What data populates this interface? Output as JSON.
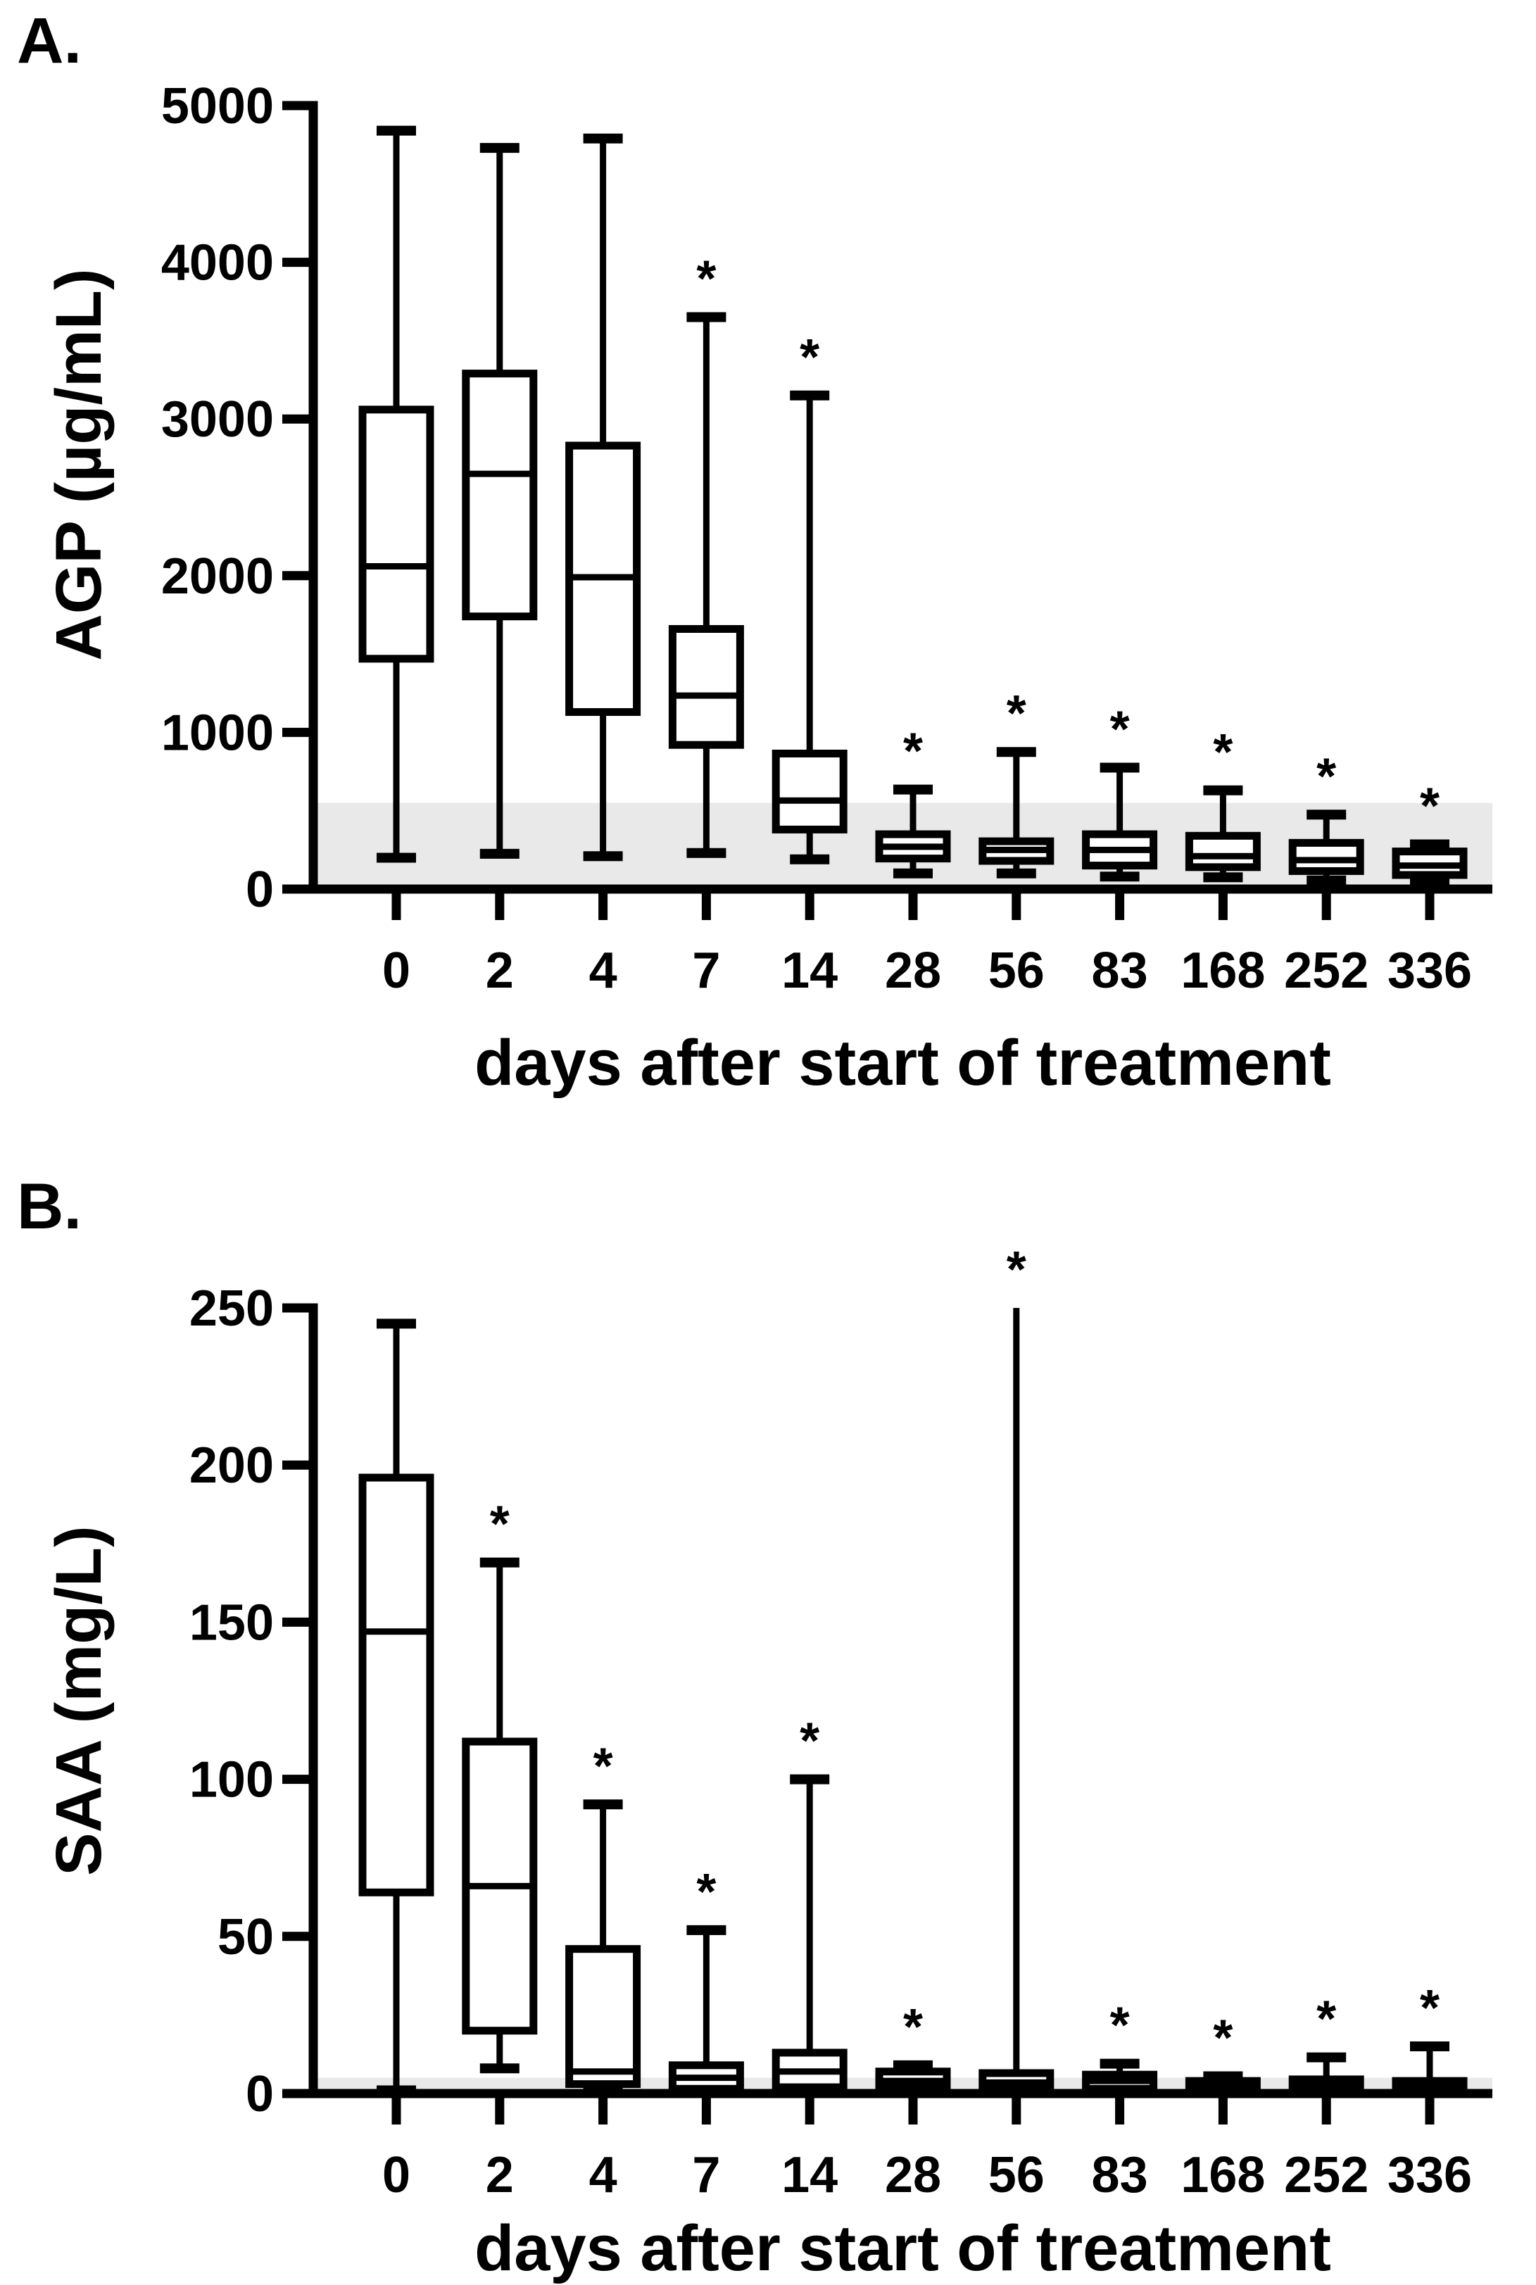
{
  "figure": {
    "background_color": "#ffffff",
    "ink_color": "#000000",
    "reference_band_color": "#e9e9e9",
    "significance_marker": "*"
  },
  "chart_data": [
    {
      "type": "box",
      "panel_label": "A.",
      "y_label": "AGP (µg/mL)",
      "x_label": "days after start of treatment",
      "ylim": [
        0,
        5000
      ],
      "y_ticks": [
        0,
        1000,
        2000,
        3000,
        4000,
        5000
      ],
      "grid": "off",
      "reference_band": [
        0,
        550
      ],
      "categories": [
        "0",
        "2",
        "4",
        "7",
        "14",
        "28",
        "56",
        "83",
        "168",
        "252",
        "336"
      ],
      "boxes": [
        {
          "day": "0",
          "whisker_low": 200,
          "q1": 1470,
          "median": 2060,
          "q3": 3060,
          "whisker_high": 4840,
          "significant": false
        },
        {
          "day": "2",
          "whisker_low": 225,
          "q1": 1740,
          "median": 2650,
          "q3": 3290,
          "whisker_high": 4730,
          "significant": false
        },
        {
          "day": "4",
          "whisker_low": 210,
          "q1": 1130,
          "median": 1990,
          "q3": 2830,
          "whisker_high": 4790,
          "significant": false
        },
        {
          "day": "7",
          "whisker_low": 230,
          "q1": 920,
          "median": 1235,
          "q3": 1660,
          "whisker_high": 3650,
          "significant": true
        },
        {
          "day": "14",
          "whisker_low": 190,
          "q1": 380,
          "median": 565,
          "q3": 865,
          "whisker_high": 3150,
          "significant": true
        },
        {
          "day": "28",
          "whisker_low": 100,
          "q1": 195,
          "median": 270,
          "q3": 350,
          "whisker_high": 635,
          "significant": true
        },
        {
          "day": "56",
          "whisker_low": 100,
          "q1": 180,
          "median": 250,
          "q3": 305,
          "whisker_high": 875,
          "significant": true
        },
        {
          "day": "83",
          "whisker_low": 80,
          "q1": 150,
          "median": 250,
          "q3": 350,
          "whisker_high": 775,
          "significant": true
        },
        {
          "day": "168",
          "whisker_low": 75,
          "q1": 140,
          "median": 210,
          "q3": 340,
          "whisker_high": 630,
          "significant": true
        },
        {
          "day": "252",
          "whisker_low": 55,
          "q1": 115,
          "median": 185,
          "q3": 295,
          "whisker_high": 475,
          "significant": true
        },
        {
          "day": "336",
          "whisker_low": 45,
          "q1": 90,
          "median": 150,
          "q3": 240,
          "whisker_high": 285,
          "significant": true
        }
      ]
    },
    {
      "type": "box",
      "panel_label": "B.",
      "y_label": "SAA (mg/L)",
      "x_label": "days after start of treatment",
      "ylim": [
        0,
        250
      ],
      "y_ticks": [
        0,
        50,
        100,
        150,
        200,
        250
      ],
      "grid": "off",
      "reference_band": [
        0,
        5
      ],
      "categories": [
        "0",
        "2",
        "4",
        "7",
        "14",
        "28",
        "56",
        "83",
        "168",
        "252",
        "336"
      ],
      "boxes": [
        {
          "day": "0",
          "whisker_low": 1,
          "q1": 64,
          "median": 147,
          "q3": 196,
          "whisker_high": 245,
          "significant": false
        },
        {
          "day": "2",
          "whisker_low": 8,
          "q1": 20,
          "median": 66,
          "q3": 112,
          "whisker_high": 169,
          "significant": true
        },
        {
          "day": "4",
          "whisker_low": 1,
          "q1": 3,
          "median": 7,
          "q3": 46,
          "whisker_high": 92,
          "significant": true
        },
        {
          "day": "7",
          "whisker_low": 0.5,
          "q1": 1.5,
          "median": 5,
          "q3": 9,
          "whisker_high": 52,
          "significant": true
        },
        {
          "day": "14",
          "whisker_low": 0.5,
          "q1": 2,
          "median": 7,
          "q3": 13,
          "whisker_high": 100,
          "significant": true
        },
        {
          "day": "28",
          "whisker_low": 0.5,
          "q1": 2,
          "median": 4,
          "q3": 7,
          "whisker_high": 9,
          "significant": true
        },
        {
          "day": "56",
          "whisker_low": 0.3,
          "q1": 1.5,
          "median": 3.5,
          "q3": 6.5,
          "whisker_high": 250,
          "whisker_high_clipped": true,
          "significant": true
        },
        {
          "day": "83",
          "whisker_low": 0.5,
          "q1": 1.5,
          "median": 4,
          "q3": 6,
          "whisker_high": 9.5,
          "significant": true
        },
        {
          "day": "168",
          "whisker_low": 0.2,
          "q1": 0.8,
          "median": 2,
          "q3": 4,
          "whisker_high": 5.5,
          "significant": true
        },
        {
          "day": "252",
          "whisker_low": 0.2,
          "q1": 1,
          "median": 2.5,
          "q3": 4.5,
          "whisker_high": 11.5,
          "significant": true
        },
        {
          "day": "336",
          "whisker_low": 0.2,
          "q1": 1,
          "median": 2,
          "q3": 4,
          "whisker_high": 15,
          "significant": true
        }
      ]
    }
  ]
}
